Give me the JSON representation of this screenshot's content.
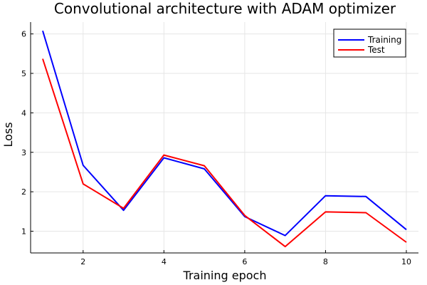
{
  "chart_data": {
    "type": "line",
    "title": "Convolutional architecture with ADAM optimizer",
    "xlabel": "Training epoch",
    "ylabel": "Loss",
    "xlim": [
      0.7,
      10.3
    ],
    "ylim": [
      0.45,
      6.3
    ],
    "xticks": [
      2,
      4,
      6,
      8,
      10
    ],
    "yticks": [
      1,
      2,
      3,
      4,
      5,
      6
    ],
    "grid": true,
    "legend_position": "top-right",
    "x": [
      1,
      2,
      3,
      4,
      5,
      6,
      7,
      8,
      9,
      10
    ],
    "series": [
      {
        "name": "Training",
        "color": "#0000ff",
        "values": [
          6.08,
          2.67,
          1.53,
          2.86,
          2.58,
          1.37,
          0.89,
          1.9,
          1.88,
          1.04
        ]
      },
      {
        "name": "Test",
        "color": "#ff0000",
        "values": [
          5.37,
          2.2,
          1.58,
          2.93,
          2.66,
          1.4,
          0.61,
          1.49,
          1.47,
          0.72
        ]
      }
    ]
  }
}
